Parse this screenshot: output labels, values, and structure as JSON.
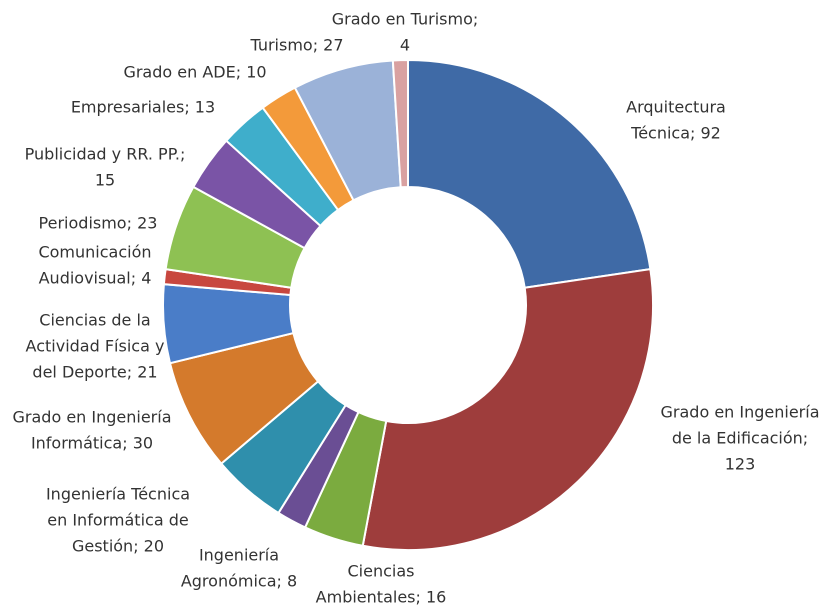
{
  "chart_data": {
    "type": "donut",
    "values": [
      92,
      123,
      16,
      8,
      20,
      30,
      21,
      4,
      23,
      15,
      13,
      10,
      27,
      4
    ],
    "value_labels": [
      [
        "Arquitectura",
        "Técnica; 92"
      ],
      [
        "Grado en Ingeniería",
        "de la Edificación;",
        "123"
      ],
      [
        "Ciencias",
        "Ambientales; 16"
      ],
      [
        "Ingeniería",
        "Agronómica; 8"
      ],
      [
        "Ingeniería Técnica",
        "en Informática de",
        "Gestión; 20"
      ],
      [
        "Grado en Ingeniería",
        "Informática; 30"
      ],
      [
        "Ciencias de la",
        "Actividad Física y",
        "del Deporte; 21"
      ],
      [
        "Comunicación",
        "Audiovisual; 4"
      ],
      [
        "Periodismo; 23"
      ],
      [
        "Publicidad y RR. PP.;",
        "15"
      ],
      [
        "Empresariales; 13"
      ],
      [
        "Grado en ADE; 10"
      ],
      [
        "Turismo; 27"
      ],
      [
        "Grado en Turismo;",
        "4"
      ]
    ],
    "colors": [
      "#3f6aa6",
      "#9e3d3c",
      "#7bab3f",
      "#6a4e94",
      "#2f8fac",
      "#d47a2c",
      "#4a7dc8",
      "#c8473f",
      "#8ec153",
      "#7a54a6",
      "#3faecb",
      "#f39a3a",
      "#9bb2d8",
      "#d9a1a1"
    ]
  }
}
